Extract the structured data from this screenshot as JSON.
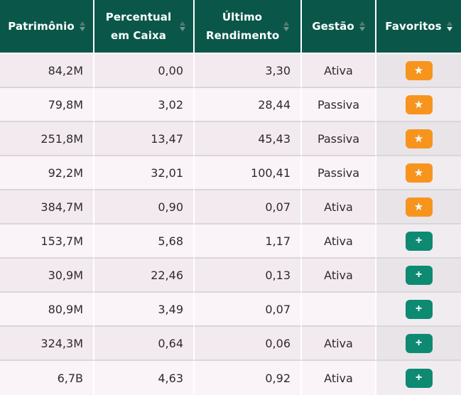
{
  "table": {
    "columns": [
      {
        "key": "patrimonio",
        "label": "Patrimônio",
        "sort": "none"
      },
      {
        "key": "percentual_caixa",
        "label": "Percentual em Caixa",
        "sort": "none"
      },
      {
        "key": "rendimento",
        "label": "Último Rendimento",
        "sort": "none"
      },
      {
        "key": "gestao",
        "label": "Gestão",
        "sort": "none"
      },
      {
        "key": "favoritos",
        "label": "Favoritos",
        "sort": "desc"
      }
    ],
    "rows": [
      {
        "patrimonio": "84,2M",
        "percentual_caixa": "0,00",
        "rendimento": "3,30",
        "gestao": "Ativa",
        "favorito": "starred"
      },
      {
        "patrimonio": "79,8M",
        "percentual_caixa": "3,02",
        "rendimento": "28,44",
        "gestao": "Passiva",
        "favorito": "starred"
      },
      {
        "patrimonio": "251,8M",
        "percentual_caixa": "13,47",
        "rendimento": "45,43",
        "gestao": "Passiva",
        "favorito": "starred"
      },
      {
        "patrimonio": "92,2M",
        "percentual_caixa": "32,01",
        "rendimento": "100,41",
        "gestao": "Passiva",
        "favorito": "starred"
      },
      {
        "patrimonio": "384,7M",
        "percentual_caixa": "0,90",
        "rendimento": "0,07",
        "gestao": "Ativa",
        "favorito": "starred"
      },
      {
        "patrimonio": "153,7M",
        "percentual_caixa": "5,68",
        "rendimento": "1,17",
        "gestao": "Ativa",
        "favorito": "add"
      },
      {
        "patrimonio": "30,9M",
        "percentual_caixa": "22,46",
        "rendimento": "0,13",
        "gestao": "Ativa",
        "favorito": "add"
      },
      {
        "patrimonio": "80,9M",
        "percentual_caixa": "3,49",
        "rendimento": "0,07",
        "gestao": "",
        "favorito": "add"
      },
      {
        "patrimonio": "324,3M",
        "percentual_caixa": "0,64",
        "rendimento": "0,06",
        "gestao": "Ativa",
        "favorito": "add"
      },
      {
        "patrimonio": "6,7B",
        "percentual_caixa": "4,63",
        "rendimento": "0,92",
        "gestao": "Ativa",
        "favorito": "add"
      }
    ]
  },
  "icons": {
    "favorite_star_glyph": "★",
    "add_plus_glyph": "+"
  },
  "colors": {
    "header_bg": "#0a574a",
    "header_text": "#ffffff",
    "row_odd": "#f2eaef",
    "row_even": "#faf3f7",
    "favoritos_col_odd": "#e9e4e8",
    "favoritos_col_even": "#f1ecf0",
    "cell_text": "#2d2a2c",
    "star_button": "#f7941e",
    "add_button": "#0e8a72",
    "row_separator": "#d9d6d9",
    "column_separator": "#ffffff",
    "sort_arrow_active": "#dfe9e4"
  }
}
